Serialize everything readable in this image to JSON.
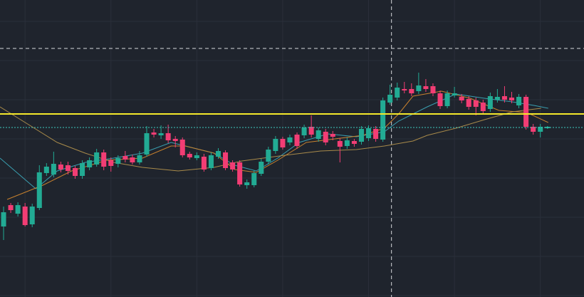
{
  "chart_data": {
    "type": "candlestick",
    "background": "#1f242d",
    "up_color": "#22ab94",
    "down_color": "#f23d74",
    "xlim": [
      -0.5,
      81.1
    ],
    "ylim": [
      0,
      417
    ],
    "grid": true,
    "grid_color": "#2a2f3a",
    "xticks": [
      3,
      15,
      27,
      39,
      51,
      63,
      75
    ],
    "yticks": [
      2,
      57,
      112,
      167,
      222,
      277,
      332,
      387
    ],
    "open": [
      99,
      129,
      117,
      127,
      102,
      125,
      174,
      172,
      186,
      185,
      181,
      170,
      182,
      186,
      203,
      192,
      187,
      198,
      196,
      189,
      200,
      231,
      227,
      230,
      222,
      221,
      201,
      195,
      197,
      181,
      197,
      203,
      189,
      189,
      157,
      157,
      173,
      190,
      205,
      222,
      217,
      228,
      227,
      239,
      222,
      232,
      229,
      219,
      212,
      219,
      218,
      223,
      236,
      221,
      273,
      280,
      292,
      292,
      289,
      296,
      296,
      286,
      268,
      283,
      281,
      278,
      276,
      273,
      264,
      277,
      282,
      280,
      269,
      281,
      239,
      232,
      237
    ],
    "high": [
      127,
      132,
      133,
      132,
      131,
      185,
      188,
      204,
      190,
      190,
      184,
      192,
      196,
      208,
      207,
      196,
      199,
      205,
      200,
      205,
      240,
      236,
      241,
      242,
      226,
      224,
      204,
      203,
      201,
      203,
      209,
      206,
      192,
      192,
      165,
      178,
      194,
      211,
      226,
      225,
      228,
      231,
      242,
      255,
      238,
      236,
      233,
      223,
      224,
      222,
      240,
      241,
      240,
      280,
      298,
      301,
      302,
      300,
      315,
      306,
      300,
      290,
      290,
      295,
      285,
      282,
      280,
      277,
      287,
      292,
      296,
      288,
      285,
      284,
      243,
      243,
      240
    ],
    "low": [
      80,
      118,
      113,
      99,
      98,
      122,
      170,
      168,
      175,
      172,
      166,
      166,
      178,
      183,
      178,
      176,
      182,
      189,
      186,
      186,
      197,
      224,
      222,
      216,
      210,
      196,
      193,
      192,
      176,
      178,
      194,
      178,
      176,
      155,
      152,
      154,
      170,
      186,
      201,
      207,
      213,
      208,
      223,
      224,
      218,
      213,
      220,
      189,
      208,
      211,
      214,
      219,
      218,
      218,
      270,
      276,
      286,
      282,
      285,
      288,
      282,
      264,
      265,
      280,
      272,
      263,
      255,
      258,
      260,
      273,
      273,
      272,
      265,
      235,
      228,
      224,
      236
    ],
    "close": [
      119,
      122,
      129,
      101,
      127,
      175,
      183,
      187,
      179,
      177,
      170,
      188,
      192,
      203,
      183,
      184,
      195,
      193,
      189,
      199,
      230,
      228,
      230,
      220,
      219,
      199,
      196,
      199,
      179,
      199,
      205,
      181,
      179,
      158,
      161,
      174,
      190,
      207,
      222,
      210,
      224,
      212,
      238,
      228,
      234,
      217,
      225,
      211,
      220,
      215,
      236,
      237,
      222,
      276,
      284,
      294,
      290,
      286,
      297,
      292,
      286,
      268,
      286,
      286,
      276,
      267,
      267,
      261,
      282,
      281,
      277,
      276,
      281,
      239,
      232,
      239,
      239
    ],
    "lines": [
      {
        "color": "#3a9fb0",
        "x": [
          -0.5,
          4.5,
          7.5,
          11.4,
          15.4,
          19.4,
          23.4,
          27.4,
          29.4,
          32.3,
          35.3,
          38.3,
          41.3,
          45.3,
          49.3,
          53.2,
          55.2,
          59.2,
          63.2,
          67.2,
          71.1,
          74.1,
          76.1
        ],
        "values": [
          195,
          152,
          177,
          189,
          195,
          202,
          217,
          207,
          202,
          185,
          177,
          195,
          217,
          229,
          225,
          232,
          247,
          267,
          285,
          279,
          274,
          269,
          265
        ]
      },
      {
        "color": "#c7812e",
        "x": [
          0.5,
          5.5,
          9.5,
          14.4,
          19.4,
          23.4,
          25.4,
          29.4,
          32.3,
          35.3,
          38.3,
          42.3,
          46.3,
          50.2,
          53.2,
          55.2,
          57.2,
          61.2,
          65.2,
          69.2,
          73.1,
          76.1
        ],
        "values": [
          137,
          157,
          177,
          192,
          195,
          212,
          212,
          202,
          179,
          175,
          192,
          217,
          222,
          227,
          237,
          257,
          282,
          289,
          279,
          262,
          259,
          245
        ]
      },
      {
        "color": "#a88a4a",
        "x": [
          -0.5,
          3.5,
          7.5,
          11.4,
          15.4,
          19.4,
          24.4,
          29.4,
          33.3,
          39.3,
          44.3,
          49.3,
          53.2,
          57.2,
          59.2,
          63.2,
          67.2,
          71.1,
          75.1
        ],
        "values": [
          267,
          242,
          217,
          202,
          189,
          182,
          177,
          182,
          191,
          199,
          205,
          207,
          212,
          219,
          227,
          237,
          249,
          260,
          265
        ]
      }
    ],
    "hlines": [
      {
        "value": 257,
        "color": "#f5e82a",
        "style": "solid",
        "width": 2
      },
      {
        "value": 238,
        "color": "#3fc8c0",
        "style": "dotted",
        "width": 1
      }
    ],
    "crosshair": {
      "x": 54.2,
      "y": 349,
      "color": "#d6d8dc"
    }
  }
}
